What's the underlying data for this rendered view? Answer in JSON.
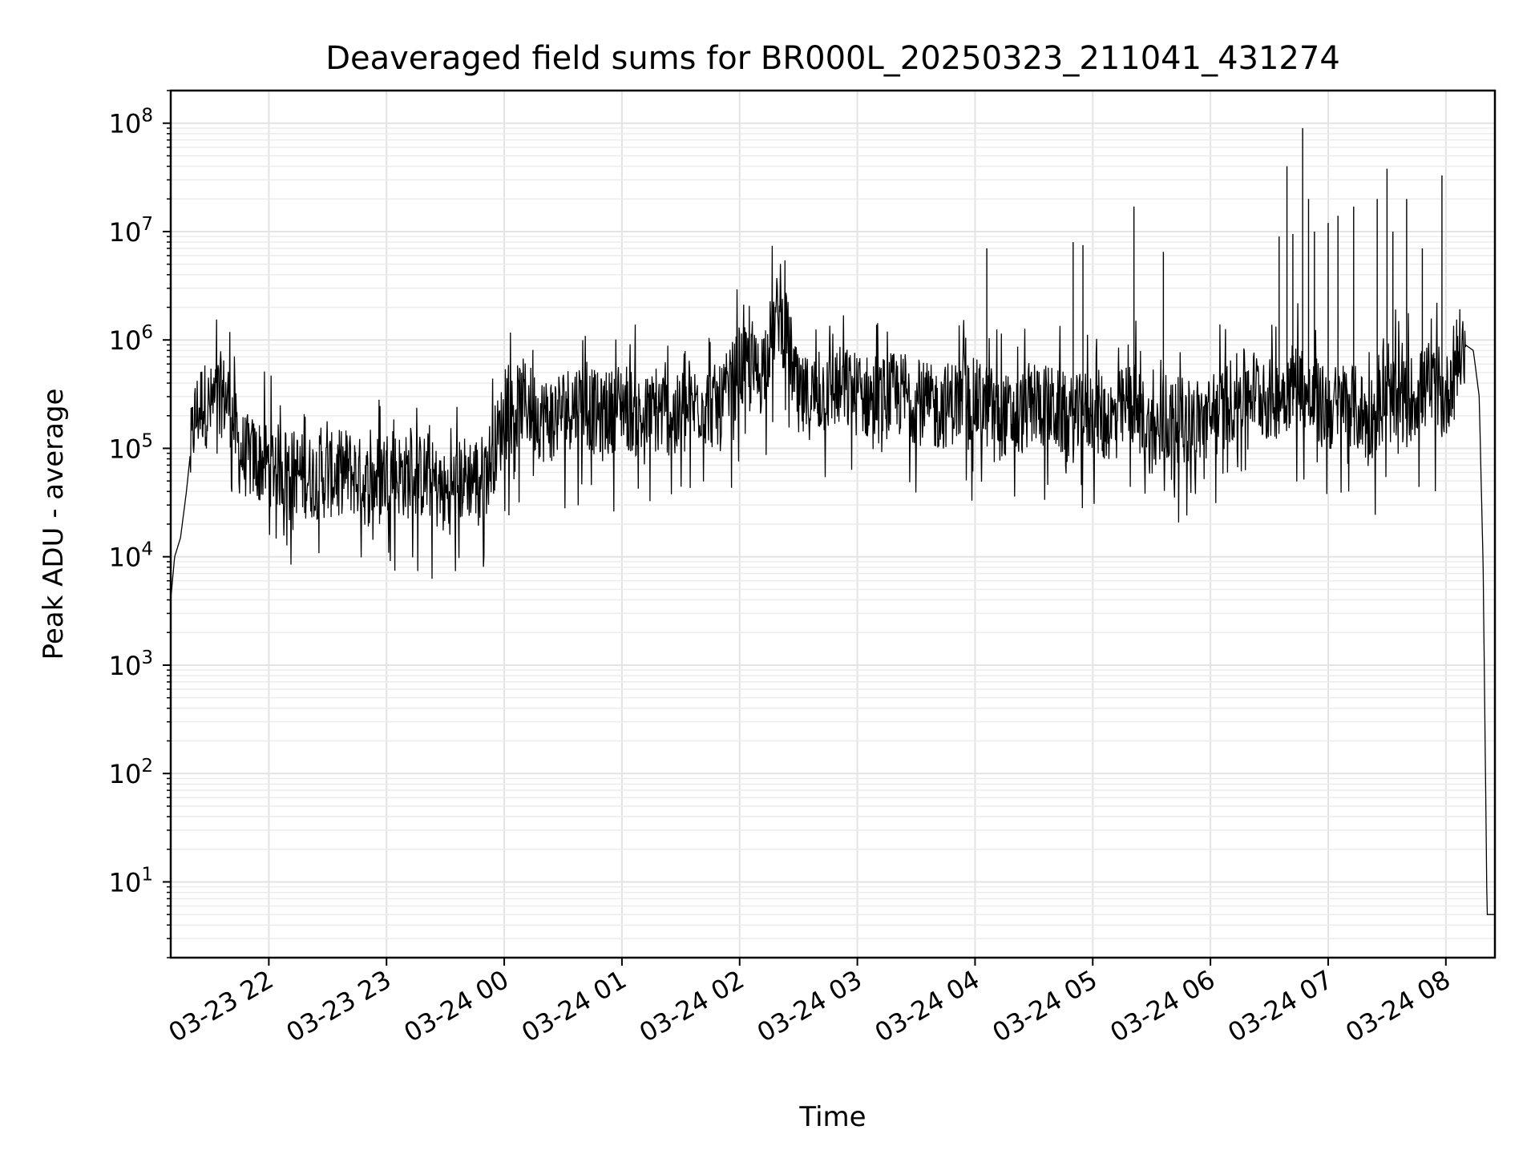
{
  "chart_data": {
    "type": "line",
    "title": "Deaveraged field sums for BR000L_20250323_211041_431274",
    "xlabel": "Time",
    "ylabel": "Peak ADU - average",
    "xlim": [
      "2025-03-23 21:10",
      "2025-03-24 08:25"
    ],
    "ylim": [
      2,
      200000000
    ],
    "y_scale": "log",
    "grid": true,
    "legend": "none",
    "line_color": "#000000",
    "x_tick_labels": [
      "03-23 22",
      "03-23 23",
      "03-24 00",
      "03-24 01",
      "03-24 02",
      "03-24 03",
      "03-24 04",
      "03-24 05",
      "03-24 06",
      "03-24 07",
      "03-24 08"
    ],
    "y_tick_labels": [
      {
        "base": "10",
        "exp": "1"
      },
      {
        "base": "10",
        "exp": "2"
      },
      {
        "base": "10",
        "exp": "3"
      },
      {
        "base": "10",
        "exp": "4"
      },
      {
        "base": "10",
        "exp": "5"
      },
      {
        "base": "10",
        "exp": "6"
      },
      {
        "base": "10",
        "exp": "7"
      },
      {
        "base": "10",
        "exp": "8"
      }
    ],
    "series": [
      {
        "x": [
          "2025-03-23 21:10",
          "2025-03-23 21:12",
          "2025-03-23 21:15",
          "2025-03-23 21:18",
          "2025-03-23 21:22",
          "2025-03-23 21:26",
          "2025-03-23 21:30",
          "2025-03-23 21:35",
          "2025-03-23 21:40",
          "2025-03-23 21:45",
          "2025-03-23 21:50",
          "2025-03-23 22:00",
          "2025-03-23 22:10",
          "2025-03-23 22:20",
          "2025-03-23 22:30",
          "2025-03-23 22:40",
          "2025-03-23 22:50",
          "2025-03-23 23:00",
          "2025-03-23 23:10",
          "2025-03-23 23:20",
          "2025-03-23 23:30",
          "2025-03-23 23:40",
          "2025-03-23 23:50",
          "2025-03-24 00:00",
          "2025-03-24 00:10",
          "2025-03-24 00:20",
          "2025-03-24 00:30",
          "2025-03-24 00:40",
          "2025-03-24 00:50",
          "2025-03-24 01:00",
          "2025-03-24 01:10",
          "2025-03-24 01:20",
          "2025-03-24 01:30",
          "2025-03-24 01:40",
          "2025-03-24 01:50",
          "2025-03-24 02:00",
          "2025-03-24 02:10",
          "2025-03-24 02:20",
          "2025-03-24 02:25",
          "2025-03-24 02:30",
          "2025-03-24 02:40",
          "2025-03-24 02:50",
          "2025-03-24 03:00",
          "2025-03-24 03:10",
          "2025-03-24 03:20",
          "2025-03-24 03:30",
          "2025-03-24 03:40",
          "2025-03-24 03:50",
          "2025-03-24 04:00",
          "2025-03-24 04:10",
          "2025-03-24 04:20",
          "2025-03-24 04:30",
          "2025-03-24 04:40",
          "2025-03-24 04:50",
          "2025-03-24 05:00",
          "2025-03-24 05:10",
          "2025-03-24 05:20",
          "2025-03-24 05:30",
          "2025-03-24 05:40",
          "2025-03-24 05:50",
          "2025-03-24 06:00",
          "2025-03-24 06:10",
          "2025-03-24 06:20",
          "2025-03-24 06:30",
          "2025-03-24 06:40",
          "2025-03-24 06:45",
          "2025-03-24 06:50",
          "2025-03-24 07:00",
          "2025-03-24 07:10",
          "2025-03-24 07:20",
          "2025-03-24 07:30",
          "2025-03-24 07:40",
          "2025-03-24 07:50",
          "2025-03-24 08:00",
          "2025-03-24 08:05",
          "2025-03-24 08:10",
          "2025-03-24 08:14",
          "2025-03-24 08:17",
          "2025-03-24 08:19",
          "2025-03-24 08:21",
          "2025-03-24 08:25"
        ],
        "y": [
          4000,
          10000,
          15000,
          40000,
          200000,
          300000,
          250000,
          350000,
          300000,
          100000,
          90000,
          80000,
          70000,
          60000,
          60000,
          70000,
          50000,
          70000,
          60000,
          60000,
          40000,
          60000,
          60000,
          200000,
          300000,
          200000,
          250000,
          300000,
          200000,
          300000,
          200000,
          250000,
          200000,
          300000,
          250000,
          600000,
          500000,
          2000000,
          1000000,
          300000,
          350000,
          400000,
          350000,
          300000,
          350000,
          300000,
          250000,
          300000,
          300000,
          250000,
          200000,
          300000,
          250000,
          200000,
          250000,
          200000,
          300000,
          150000,
          200000,
          200000,
          200000,
          300000,
          400000,
          300000,
          400000,
          500000,
          300000,
          250000,
          300000,
          200000,
          300000,
          300000,
          400000,
          300000,
          800000,
          900000,
          800000,
          300000,
          8000,
          5,
          5
        ]
      }
    ],
    "spikes": [
      {
        "x": "2025-03-24 04:06",
        "y": 7000000
      },
      {
        "x": "2025-03-24 04:50",
        "y": 8000000
      },
      {
        "x": "2025-03-24 04:55",
        "y": 7500000
      },
      {
        "x": "2025-03-24 05:21",
        "y": 17000000
      },
      {
        "x": "2025-03-24 05:36",
        "y": 6500000
      },
      {
        "x": "2025-03-24 06:35",
        "y": 9000000
      },
      {
        "x": "2025-03-24 06:39",
        "y": 40000000
      },
      {
        "x": "2025-03-24 06:42",
        "y": 9500000
      },
      {
        "x": "2025-03-24 06:47",
        "y": 90000000
      },
      {
        "x": "2025-03-24 06:50",
        "y": 20000000
      },
      {
        "x": "2025-03-24 06:53",
        "y": 10000000
      },
      {
        "x": "2025-03-24 07:00",
        "y": 12000000
      },
      {
        "x": "2025-03-24 07:05",
        "y": 14000000
      },
      {
        "x": "2025-03-24 07:13",
        "y": 17000000
      },
      {
        "x": "2025-03-24 07:25",
        "y": 20000000
      },
      {
        "x": "2025-03-24 07:30",
        "y": 38000000
      },
      {
        "x": "2025-03-24 07:33",
        "y": 10000000
      },
      {
        "x": "2025-03-24 07:40",
        "y": 20000000
      },
      {
        "x": "2025-03-24 07:48",
        "y": 7000000
      },
      {
        "x": "2025-03-24 07:58",
        "y": 33000000
      }
    ]
  }
}
